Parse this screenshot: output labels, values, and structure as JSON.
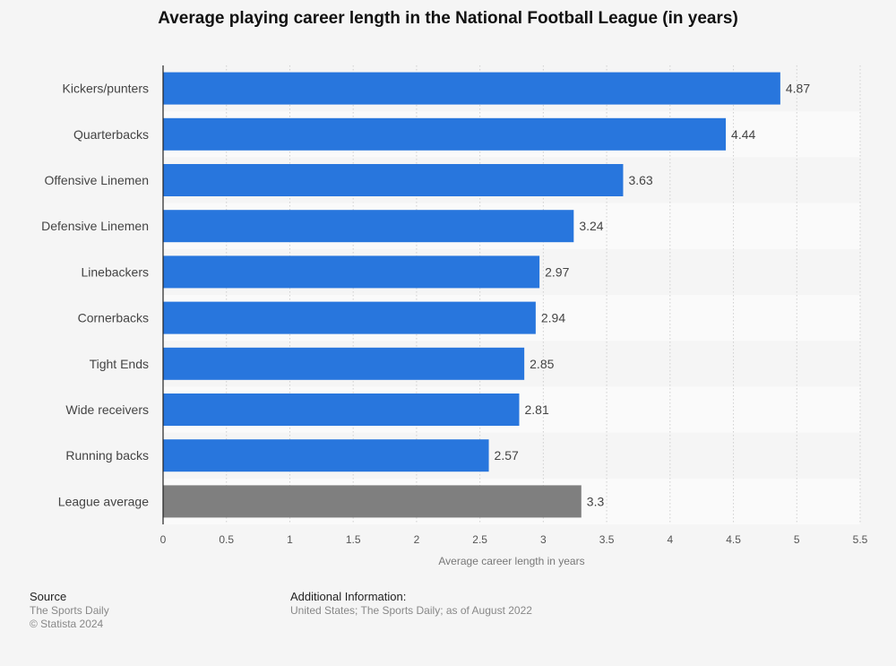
{
  "chart_data": {
    "type": "bar",
    "orientation": "horizontal",
    "title": "Average playing career length in the National Football League (in years)",
    "categories": [
      "Kickers/punters",
      "Quarterbacks",
      "Offensive Linemen",
      "Defensive Linemen",
      "Linebackers",
      "Cornerbacks",
      "Tight Ends",
      "Wide receivers",
      "Running backs",
      "League average"
    ],
    "values": [
      4.87,
      4.44,
      3.63,
      3.24,
      2.97,
      2.94,
      2.85,
      2.81,
      2.57,
      3.3
    ],
    "value_labels": [
      "4.87",
      "4.44",
      "3.63",
      "3.24",
      "2.97",
      "2.94",
      "2.85",
      "2.81",
      "2.57",
      "3.3"
    ],
    "bar_colors": [
      "#2876dd",
      "#2876dd",
      "#2876dd",
      "#2876dd",
      "#2876dd",
      "#2876dd",
      "#2876dd",
      "#2876dd",
      "#2876dd",
      "#7f7f7f"
    ],
    "xlabel": "Average career length in years",
    "ylabel": "",
    "xlim": [
      0,
      5.5
    ],
    "ticks": [
      0,
      0.5,
      1,
      1.5,
      2,
      2.5,
      3,
      3.5,
      4,
      4.5,
      5,
      5.5
    ],
    "tick_labels": [
      "0",
      "0.5",
      "1",
      "1.5",
      "2",
      "2.5",
      "3",
      "3.5",
      "4",
      "4.5",
      "5",
      "5.5"
    ],
    "grid": true,
    "legend": "none"
  },
  "footer": {
    "source_heading": "Source",
    "source_lines": [
      "The Sports Daily",
      "© Statista 2024"
    ],
    "info_heading": "Additional Information:",
    "info_line": "United States; The Sports Daily; as of August 2022"
  }
}
